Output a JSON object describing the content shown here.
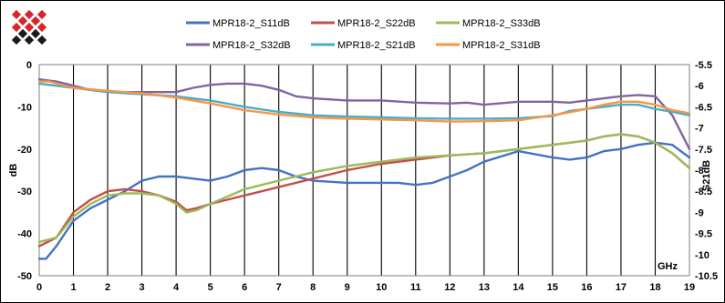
{
  "chart_data": {
    "type": "line",
    "xlabel": "GHz",
    "ylabel": "dB",
    "y2label": "S21dB",
    "xlim": [
      0,
      19
    ],
    "ylim": [
      -50,
      0
    ],
    "y2lim": [
      -10.5,
      -5.5
    ],
    "x_ticks": [
      0,
      1,
      2,
      3,
      4,
      5,
      6,
      7,
      8,
      9,
      10,
      11,
      12,
      13,
      14,
      15,
      16,
      17,
      18,
      19
    ],
    "y_ticks": [
      0,
      -10,
      -20,
      -30,
      -40,
      -50
    ],
    "y2_ticks": [
      -5.5,
      -6,
      -6.5,
      -7,
      -7.5,
      -8,
      -8.5,
      -9,
      -9.5,
      -10,
      -10.5
    ],
    "grid": "vertical",
    "legend_position": "top",
    "series": [
      {
        "name": "MPR18-2_S11dB",
        "color": "#4472c4",
        "axis": "left",
        "x": [
          0,
          0.2,
          0.5,
          1,
          1.5,
          2,
          2.5,
          3,
          3.5,
          4,
          4.5,
          5,
          5.5,
          6,
          6.5,
          7,
          7.5,
          8,
          9,
          10,
          10.5,
          11,
          11.5,
          12,
          12.5,
          13,
          14,
          15,
          15.5,
          16,
          16.5,
          17,
          17.5,
          18,
          18.5,
          19
        ],
        "y": [
          -46,
          -46,
          -43,
          -37,
          -34,
          -32,
          -30,
          -27.5,
          -26.5,
          -26.5,
          -27,
          -27.5,
          -26.5,
          -25,
          -24.5,
          -25,
          -26.5,
          -27.5,
          -28,
          -28,
          -28,
          -28.5,
          -28,
          -26.5,
          -25,
          -23,
          -20.5,
          -22,
          -22.5,
          -22,
          -20.5,
          -20,
          -19,
          -18.5,
          -19,
          -22
        ]
      },
      {
        "name": "MPR18-2_S22dB",
        "color": "#c0504d",
        "axis": "left",
        "x": [
          0,
          0.5,
          1,
          1.5,
          2,
          2.5,
          3,
          3.5,
          4,
          4.3,
          4.6,
          5,
          6,
          7,
          8,
          9,
          10,
          11,
          12,
          13,
          14,
          15,
          16,
          16.5,
          17,
          17.5,
          18,
          18.5,
          19
        ],
        "y": [
          -43,
          -41,
          -35,
          -32,
          -30,
          -29.5,
          -30,
          -31,
          -32.5,
          -34.5,
          -34,
          -33,
          -31,
          -29,
          -27,
          -25,
          -23.5,
          -22.5,
          -21.5,
          -21,
          -20,
          -19,
          -18,
          -17,
          -16.5,
          -17,
          -18.5,
          -21,
          -24.5
        ]
      },
      {
        "name": "MPR18-2_S33dB",
        "color": "#9bbb59",
        "axis": "left",
        "x": [
          0,
          0.5,
          1,
          1.5,
          2,
          2.5,
          3,
          3.5,
          4,
          4.3,
          4.6,
          5,
          6,
          7,
          8,
          9,
          10,
          11,
          12,
          13,
          14,
          15,
          16,
          16.5,
          17,
          17.5,
          18,
          18.5,
          19
        ],
        "y": [
          -42,
          -41,
          -36,
          -33,
          -31,
          -30.5,
          -30.5,
          -31,
          -33,
          -35,
          -34.5,
          -33,
          -29.5,
          -27.5,
          -25.5,
          -24,
          -23,
          -22,
          -21.5,
          -21,
          -20,
          -19,
          -18,
          -17,
          -16.5,
          -17,
          -18.5,
          -21,
          -24.5
        ]
      },
      {
        "name": "MPR18-2_S32dB",
        "color": "#8064a2",
        "axis": "left",
        "x": [
          0,
          0.5,
          1,
          1.5,
          2,
          2.5,
          3,
          3.5,
          4,
          4.5,
          5,
          5.5,
          6,
          6.5,
          7,
          7.5,
          8,
          9,
          10,
          11,
          12,
          12.5,
          13,
          14,
          15,
          15.5,
          16,
          16.5,
          17,
          17.5,
          18,
          18.5,
          19
        ],
        "y": [
          -3.5,
          -4,
          -5,
          -6,
          -6.5,
          -6.5,
          -6.5,
          -6.5,
          -6.5,
          -5.5,
          -4.8,
          -4.5,
          -4.5,
          -5,
          -6,
          -7.5,
          -8,
          -8.5,
          -8.5,
          -9,
          -9.2,
          -9,
          -9.5,
          -8.8,
          -8.8,
          -9,
          -8.5,
          -8,
          -7.5,
          -7.2,
          -7.5,
          -12,
          -20
        ]
      },
      {
        "name": "MPR18-2_S21dB",
        "color": "#4bacc6",
        "axis": "right",
        "x": [
          0,
          1,
          2,
          3,
          4,
          5,
          6,
          7,
          8,
          9,
          10,
          11,
          12,
          13,
          14,
          15,
          15.5,
          16,
          16.5,
          17,
          17.5,
          18,
          18.5,
          19
        ],
        "y": [
          -5.95,
          -6.05,
          -6.15,
          -6.2,
          -6.25,
          -6.35,
          -6.5,
          -6.62,
          -6.7,
          -6.73,
          -6.75,
          -6.77,
          -6.78,
          -6.78,
          -6.77,
          -6.72,
          -6.6,
          -6.55,
          -6.5,
          -6.45,
          -6.45,
          -6.55,
          -6.62,
          -6.7
        ]
      },
      {
        "name": "MPR18-2_S31dB",
        "color": "#f79646",
        "axis": "right",
        "x": [
          0,
          0.3,
          1,
          2,
          3,
          4,
          5,
          6,
          7,
          8,
          9,
          10,
          11,
          12,
          13,
          14,
          15,
          15.5,
          16,
          16.5,
          17,
          17.5,
          18,
          18.5,
          19
        ],
        "y": [
          -5.9,
          -5.9,
          -6.05,
          -6.12,
          -6.18,
          -6.28,
          -6.42,
          -6.58,
          -6.68,
          -6.75,
          -6.78,
          -6.8,
          -6.82,
          -6.85,
          -6.84,
          -6.82,
          -6.7,
          -6.63,
          -6.55,
          -6.45,
          -6.38,
          -6.38,
          -6.45,
          -6.58,
          -6.65
        ]
      }
    ]
  },
  "logo": {
    "colors": [
      "#d7262a",
      "#1a1a1a"
    ]
  }
}
